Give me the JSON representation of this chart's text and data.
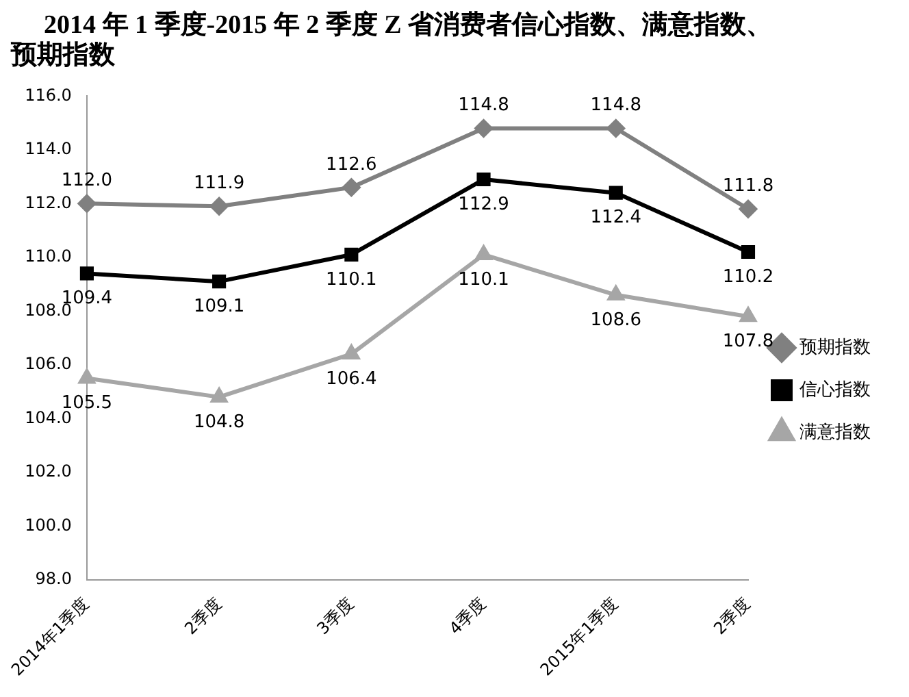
{
  "chart_data": {
    "type": "line",
    "title": "2014 年 1 季度-2015 年 2 季度 Z 省消费者信心指数、满意指数、预期指数",
    "categories": [
      "2014年1季度",
      "2季度",
      "3季度",
      "4季度",
      "2015年1季度",
      "2季度"
    ],
    "series": [
      {
        "name": "预期指数",
        "color": "#808080",
        "marker": "diamond",
        "values": [
          112.0,
          111.9,
          112.6,
          114.8,
          114.8,
          111.8
        ],
        "value_labels": [
          "112.0",
          "111.9",
          "112.6",
          "114.8",
          "114.8",
          "111.8"
        ]
      },
      {
        "name": "信心指数",
        "color": "#000000",
        "marker": "square",
        "values": [
          109.4,
          109.1,
          110.1,
          112.9,
          112.4,
          110.2
        ],
        "value_labels": [
          "109.4",
          "109.1",
          "110.1",
          "112.9",
          "112.4",
          "110.2"
        ]
      },
      {
        "name": "满意指数",
        "color": "#a6a6a6",
        "marker": "triangle",
        "values": [
          105.5,
          104.8,
          106.4,
          110.1,
          108.6,
          107.8
        ],
        "value_labels": [
          "105.5",
          "104.8",
          "106.4",
          "110.1",
          "108.6",
          "107.8"
        ]
      }
    ],
    "ylim": [
      98,
      116
    ],
    "yticks": [
      {
        "value": 98,
        "label": "98.0"
      },
      {
        "value": 100,
        "label": "100.0"
      },
      {
        "value": 102,
        "label": "102.0"
      },
      {
        "value": 104,
        "label": "104.0"
      },
      {
        "value": 106,
        "label": "106.0"
      },
      {
        "value": 108,
        "label": "108.0"
      },
      {
        "value": 110,
        "label": "110.0"
      },
      {
        "value": 112,
        "label": "112.0"
      },
      {
        "value": 114,
        "label": "114.0"
      },
      {
        "value": 116,
        "label": "116.0"
      }
    ],
    "legend": "right",
    "grid": false,
    "line_style": "solid"
  }
}
